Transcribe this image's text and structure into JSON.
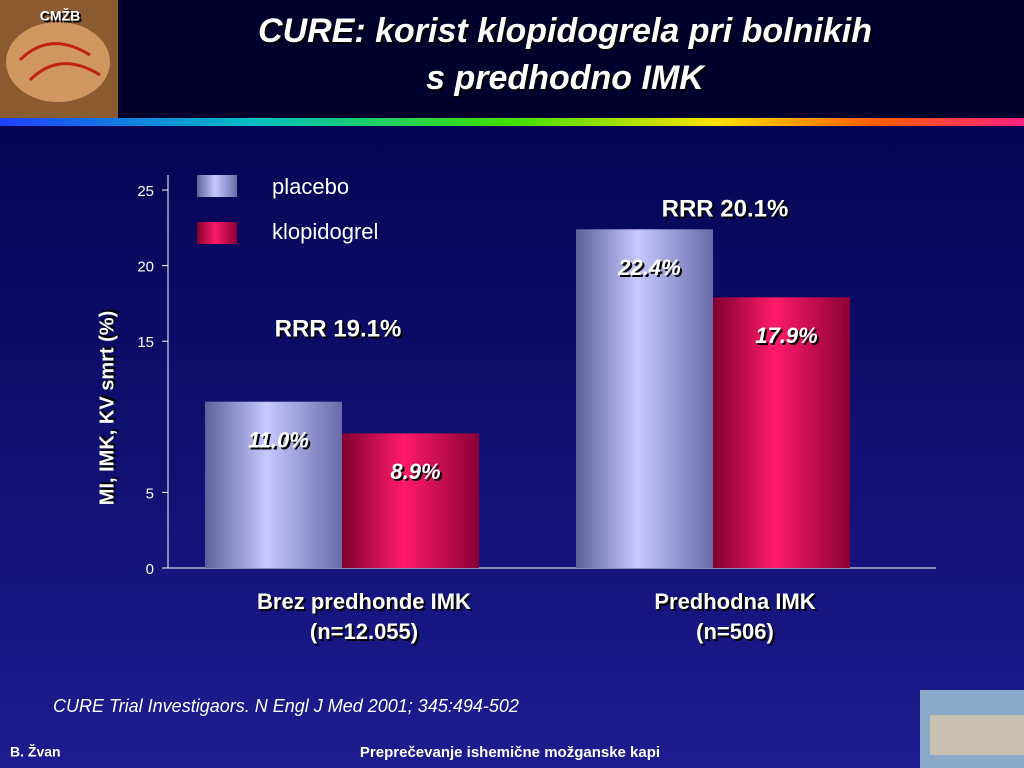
{
  "header": {
    "logo": "CMŽB",
    "title_lines": [
      "CURE: korist klopidogrela pri bolnikih",
      "s predhodno IMK"
    ]
  },
  "chart_data": {
    "type": "bar",
    "y_label": "MI, IMK, KV smrt (%)",
    "categories": [
      "Brez predhonde IMK",
      "Predhodna IMK"
    ],
    "category_notes": [
      "(n=12.055)",
      "(n=506)"
    ],
    "series": [
      {
        "name": "placebo",
        "color": "#b8b8f8",
        "values": [
          11.0,
          22.4
        ],
        "value_labels": [
          "11.0%",
          "22.4%"
        ]
      },
      {
        "name": "klopidogrel",
        "color": "#e8105a",
        "values": [
          8.9,
          17.9
        ],
        "value_labels": [
          "8.9%",
          "17.9%"
        ]
      }
    ],
    "annotations": [
      "RRR 19.1%",
      "RRR 20.1%"
    ],
    "ylim": [
      0,
      25
    ],
    "yticks": [
      0,
      5,
      15,
      20,
      25
    ],
    "legend": "top-left"
  },
  "citation": "CURE Trial Investigaors. N Engl J Med 2001; 345:494-502",
  "footer": {
    "author": "B. Žvan",
    "subject": "Preprečevanje ishemične možganske kapi"
  }
}
